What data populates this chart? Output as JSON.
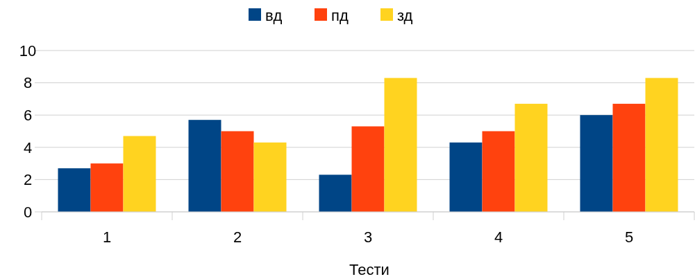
{
  "chart_data": {
    "type": "bar",
    "xlabel": "Тести",
    "categories": [
      "1",
      "2",
      "3",
      "4",
      "5"
    ],
    "series": [
      {
        "name": "вд",
        "color": "#004586",
        "values": [
          2.7,
          5.7,
          2.3,
          4.3,
          6.0
        ]
      },
      {
        "name": "пд",
        "color": "#ff420e",
        "values": [
          3.0,
          5.0,
          5.3,
          5.0,
          6.7
        ]
      },
      {
        "name": "зд",
        "color": "#ffd320",
        "values": [
          4.7,
          4.3,
          8.3,
          6.7,
          8.3
        ]
      }
    ],
    "ylim": [
      0,
      10
    ],
    "yticks": [
      0,
      2,
      4,
      6,
      8,
      10
    ],
    "grid": "y",
    "legend": "top"
  }
}
